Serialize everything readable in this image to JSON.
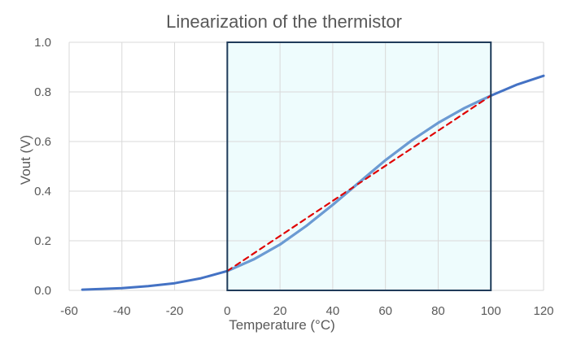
{
  "chart_data": {
    "type": "line",
    "title": "Linearization of the thermistor",
    "xlabel": "Temperature (°C)",
    "ylabel": "Vout (V)",
    "xlim": [
      -60,
      120
    ],
    "ylim": [
      0,
      1.0
    ],
    "x_ticks": [
      "-60",
      "-40",
      "-20",
      "0",
      "20",
      "40",
      "60",
      "80",
      "100",
      "120"
    ],
    "y_ticks": [
      "0.0",
      "0.2",
      "0.4",
      "0.6",
      "0.8",
      "1.0"
    ],
    "grid": true,
    "legend": "none",
    "highlight_region": {
      "x": [
        0,
        100
      ],
      "y": [
        0,
        1.0
      ],
      "fill": "#eefcfd",
      "stroke": "#1f3b5a"
    },
    "series": [
      {
        "style": "solid",
        "color": "#4472c4",
        "x": [
          -55,
          -50,
          -40,
          -30,
          -20,
          -10,
          0,
          10,
          20,
          30,
          40,
          50,
          60,
          70,
          80,
          90,
          100,
          110,
          120
        ],
        "y": [
          0.003,
          0.005,
          0.009,
          0.017,
          0.029,
          0.049,
          0.078,
          0.125,
          0.185,
          0.26,
          0.345,
          0.435,
          0.525,
          0.605,
          0.675,
          0.735,
          0.785,
          0.83,
          0.865
        ]
      },
      {
        "style": "dashed",
        "color": "#e00000",
        "x": [
          0,
          100
        ],
        "y": [
          0.078,
          0.785
        ]
      }
    ]
  }
}
